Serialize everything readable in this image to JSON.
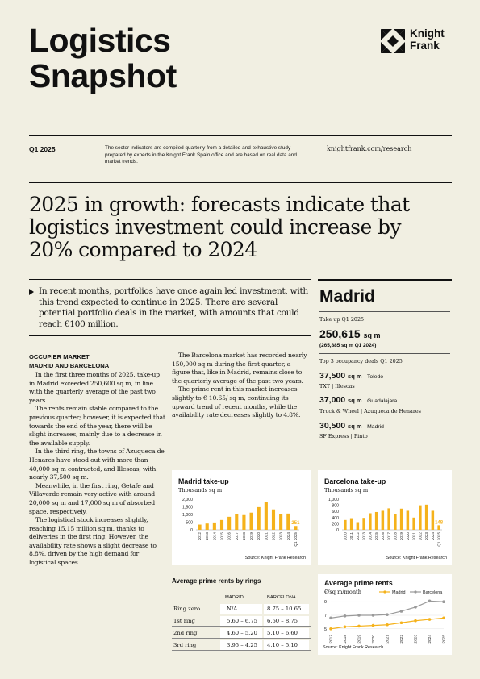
{
  "header": {
    "title_line1": "Logistics",
    "title_line2": "Snapshot",
    "logo_line1": "Knight",
    "logo_line2": "Frank",
    "quarter": "Q1 2025",
    "intro": "The sector indicators are compiled quarterly from a detailed and exhaustive study prepared by experts in the Knight Frank Spain office and are based on real data and market trends.",
    "website": "knightfrank.com/research"
  },
  "headline": {
    "line1": "2025 in growth: forecasts indicate that",
    "line2": "logistics investment could increase by",
    "line3": "20% compared to 2024"
  },
  "lead": "In recent months, portfolios have once again led investment, with this trend expected to continue in 2025. There are several potential portfolio deals in the market, with amounts that could reach €100 million.",
  "section": {
    "heading_line1": "OCCUPIER MARKET",
    "heading_line2": "MADRID AND BARCELONA",
    "col1": [
      "In the first three months of 2025, take-up in Madrid exceeded 250,600 sq m, in line with the quarterly average of the past two years.",
      "The rents remain stable compared to the previous quarter; however, it is expected that towards the end of the year, there will be slight increases, mainly due to a decrease in the available supply.",
      "In the third ring, the towns of Azuqueca de Henares have stood out with more than 40,000 sq m contracted, and Illescas, with nearly 37,500 sq m.",
      "Meanwhile, in the first ring, Getafe and Villaverde remain very active with around 20,000 sq m and 17,000 sq m of absorbed space, respectively.",
      "The logistical stock increases slightly, reaching 15.15 million sq m, thanks to deliveries in the first ring. However, the availability rate shows a slight decrease to 8.8%, driven by the high demand for logistical spaces."
    ],
    "col2": [
      "The Barcelona market has recorded nearly 150,000 sq m during the first quarter, a figure that, like in Madrid, remains close to the quarterly average of the past two years.",
      "The prime rent in this market increases slightly to € 10.65/ sq m, continuing its upward trend of recent months, while the availability rate decreases slightly to 4.8%."
    ]
  },
  "madrid_panel": {
    "title": "Madrid",
    "takeup_label": "Take up Q1 2025",
    "takeup_value": "250,615",
    "takeup_unit": "sq m",
    "takeup_prev": "(265,885 sq m Q1 2024)",
    "deals_label": "Top 3 occupancy deals Q1 2025",
    "deals": [
      {
        "value": "37,500",
        "unit": "sq m",
        "location": "| Toledo",
        "tenant": "TXT | Illescas"
      },
      {
        "value": "37,000",
        "unit": "sq m",
        "location": "| Guadalajara",
        "tenant": "Truck & Wheel | Azuqueca de Henares"
      },
      {
        "value": "30,500",
        "unit": "sq m",
        "location": "| Madrid",
        "tenant": "SF Express | Pinto"
      }
    ]
  },
  "charts": {
    "madrid": {
      "title": "Madrid take-up",
      "unit": "Thousands sq m",
      "source": "Source: Knight Frank Research",
      "highlight_label": "251",
      "bar_color": "#f5b21b",
      "y_ticks": [
        "2,000",
        "1,500",
        "1,000",
        "500",
        "0"
      ]
    },
    "barcelona": {
      "title": "Barcelona take-up",
      "unit": "Thousands sq m",
      "source": "Source: Knight Frank Research",
      "highlight_label": "148",
      "bar_color": "#f5b21b",
      "y_ticks": [
        "1,000",
        "800",
        "600",
        "400",
        "200",
        "0"
      ]
    },
    "rents": {
      "title": "Average prime rents",
      "unit": "€/sq m/month",
      "legend_madrid": "Madrid",
      "legend_barcelona": "Barcelona",
      "source": "Source: Knight Frank Research",
      "madrid_color": "#f5b21b",
      "barcelona_color": "#9a9a9a",
      "y_ticks": [
        "9",
        "7",
        "5"
      ]
    }
  },
  "chart_data": [
    {
      "type": "bar",
      "title": "Madrid take-up",
      "ylabel": "Thousands sq m",
      "categories": [
        "2012",
        "2013",
        "2014",
        "2015",
        "2016",
        "2017",
        "2018",
        "2019",
        "2020",
        "2021",
        "2022",
        "2023",
        "2024",
        "Q1 2025"
      ],
      "values": [
        340,
        410,
        480,
        640,
        850,
        1050,
        960,
        1120,
        1480,
        1800,
        1330,
        1040,
        1060,
        251
      ],
      "ylim": [
        0,
        2000
      ]
    },
    {
      "type": "bar",
      "title": "Barcelona take-up",
      "ylabel": "Thousands sq m",
      "categories": [
        "2010",
        "2011",
        "2012",
        "2013",
        "2014",
        "2015",
        "2016",
        "2017",
        "2018",
        "2019",
        "2020",
        "2021",
        "2022",
        "2023",
        "2024",
        "Q1 2025"
      ],
      "values": [
        320,
        380,
        250,
        390,
        540,
        580,
        620,
        700,
        510,
        690,
        620,
        400,
        800,
        820,
        620,
        148
      ],
      "ylim": [
        0,
        1000
      ]
    },
    {
      "type": "line",
      "title": "Average prime rents",
      "ylabel": "€/sq m/month",
      "categories": [
        "2017",
        "2018",
        "2019",
        "2020",
        "2021",
        "2022",
        "2023",
        "2024",
        "2025"
      ],
      "series": [
        {
          "name": "Madrid",
          "values": [
            5.0,
            5.3,
            5.4,
            5.5,
            5.6,
            5.9,
            6.2,
            6.4,
            6.6
          ]
        },
        {
          "name": "Barcelona",
          "values": [
            6.6,
            6.9,
            7.0,
            7.0,
            7.1,
            7.6,
            8.2,
            9.1,
            9.0
          ]
        }
      ],
      "ylim": [
        4.5,
        9.5
      ]
    }
  ],
  "rents_table": {
    "title": "Average prime rents by rings",
    "col_madrid": "MADRID",
    "col_barcelona": "BARCELONA",
    "rows": [
      {
        "ring": "Ring zero",
        "madrid": "N/A",
        "barcelona": "8.75 – 10.65"
      },
      {
        "ring": "1st ring",
        "madrid": "5.60 – 6.75",
        "barcelona": "6.60 – 8.75"
      },
      {
        "ring": "2nd ring",
        "madrid": "4.60 – 5.20",
        "barcelona": "5.10 – 6.60"
      },
      {
        "ring": "3rd ring",
        "madrid": "3.95 – 4.25",
        "barcelona": "4.10 – 5.10"
      }
    ]
  }
}
